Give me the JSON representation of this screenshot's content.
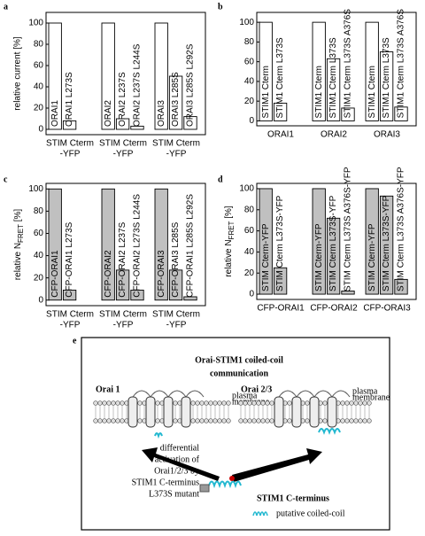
{
  "chart_data": [
    {
      "type": "bar",
      "panel": "a",
      "ylabel": "relative current [%]",
      "ylim": [
        -5,
        110
      ],
      "yticks": [
        0,
        20,
        40,
        60,
        80,
        100
      ],
      "color": "#ffffff",
      "groups": [
        {
          "label": [
            "STIM Cterm",
            "-YFP"
          ],
          "bars": [
            {
              "label": "ORAI1",
              "value": 100
            },
            {
              "label": "ORAI1 L273S",
              "value": 8
            }
          ]
        },
        {
          "label": [
            "STIM Cterm",
            "-YFP"
          ],
          "bars": [
            {
              "label": "ORAI2",
              "value": 100
            },
            {
              "label": "ORAI2 L237S",
              "value": 10
            },
            {
              "label": "ORAI2 L237S L244S",
              "value": 3
            }
          ]
        },
        {
          "label": [
            "STIM Cterm",
            "-YFP"
          ],
          "bars": [
            {
              "label": "ORAI3",
              "value": 100
            },
            {
              "label": "ORAI3 L285S",
              "value": 50
            },
            {
              "label": "ORAI3 L285S L292S",
              "value": 12
            }
          ]
        }
      ]
    },
    {
      "type": "bar",
      "panel": "b",
      "ylim": [
        -5,
        110
      ],
      "yticks": [
        0,
        20,
        40,
        60,
        80,
        100
      ],
      "color": "#ffffff",
      "groups": [
        {
          "label": [
            "ORAI1"
          ],
          "bars": [
            {
              "label": "STIM1 Cterm",
              "value": 100
            },
            {
              "label": "STIM1 Cterm L373S",
              "value": 18
            }
          ]
        },
        {
          "label": [
            "ORAI2"
          ],
          "bars": [
            {
              "label": "STIM1 Cterm",
              "value": 100
            },
            {
              "label": "STIM1 Cterm L373S",
              "value": 63
            },
            {
              "label": "STIM1 Cterm L373S A376S",
              "value": 13
            }
          ]
        },
        {
          "label": [
            "ORAI3"
          ],
          "bars": [
            {
              "label": "STIM1 Cterm",
              "value": 100
            },
            {
              "label": "STIM1 Cterm L373S",
              "value": 70
            },
            {
              "label": "STIM1 Cterm L373S A376S",
              "value": 14
            }
          ]
        }
      ]
    },
    {
      "type": "bar",
      "panel": "c",
      "ylabel": {
        "text": "relative N",
        "sub": "FRET",
        "after": " [%]"
      },
      "ylim": [
        -5,
        105
      ],
      "yticks": [
        0,
        20,
        40,
        60,
        80,
        100
      ],
      "color": "#c0c0c0",
      "groups": [
        {
          "label": [
            "STIM Cterm",
            "-YFP"
          ],
          "bars": [
            {
              "label": "CFP-ORAI1",
              "value": 100
            },
            {
              "label": "CFP-ORAI1 L273S",
              "value": 9
            }
          ]
        },
        {
          "label": [
            "STIM Cterm",
            "-YFP"
          ],
          "bars": [
            {
              "label": "CFP-ORAI2",
              "value": 100
            },
            {
              "label": "CFP-ORAI2 L237S",
              "value": 27
            },
            {
              "label": "CFP-ORAI2 L273S L244S",
              "value": 9
            }
          ]
        },
        {
          "label": [
            "STIM Cterm",
            "-YFP"
          ],
          "bars": [
            {
              "label": "CFP-ORAI3",
              "value": 100
            },
            {
              "label": "CFP-ORAI3 L285S",
              "value": 27
            },
            {
              "label": "CFP-ORAI1 L285S L292S",
              "value": 3
            }
          ]
        }
      ]
    },
    {
      "type": "bar",
      "panel": "d",
      "ylabel": {
        "text": "relative N",
        "sub": "FRET",
        "after": " [%]"
      },
      "ylim": [
        -5,
        105
      ],
      "yticks": [
        0,
        20,
        40,
        60,
        80,
        100
      ],
      "color": "#c0c0c0",
      "groups": [
        {
          "label": [
            "CFP-ORAI1"
          ],
          "bars": [
            {
              "label": "STIM Cterm-YFP",
              "value": 100
            },
            {
              "label": "STIM Cterm L373S-YFP",
              "value": 25
            }
          ]
        },
        {
          "label": [
            "CFP-ORAI2"
          ],
          "bars": [
            {
              "label": "STIM Cterm-YFP",
              "value": 100
            },
            {
              "label": "STIM Cterm L373S-YFP",
              "value": 72
            },
            {
              "label": "STIM Cterm L373S A376S-YFP",
              "value": 3
            }
          ]
        },
        {
          "label": [
            "CFP-ORAI3"
          ],
          "bars": [
            {
              "label": "STIM Cterm-YFP",
              "value": 100
            },
            {
              "label": "STIM Cterm L373S-YFP",
              "value": 93
            },
            {
              "label": "STIM Cterm L373S A376S-YFP",
              "value": 14
            }
          ]
        }
      ]
    }
  ],
  "diagram": {
    "panel": "e",
    "title": [
      "Orai-STIM1 coiled-coil",
      "communication"
    ],
    "left_label": "Orai 1",
    "right_label": "Orai 2/3",
    "membrane_label": [
      "plasma",
      "membrane"
    ],
    "note": [
      "differential",
      "activation of",
      "Orai1/2/3 by",
      "STIM1 C-terminus",
      "L373S mutant"
    ],
    "stim_label": "STIM1 C-terminus",
    "legend": "putative coiled-coil"
  }
}
